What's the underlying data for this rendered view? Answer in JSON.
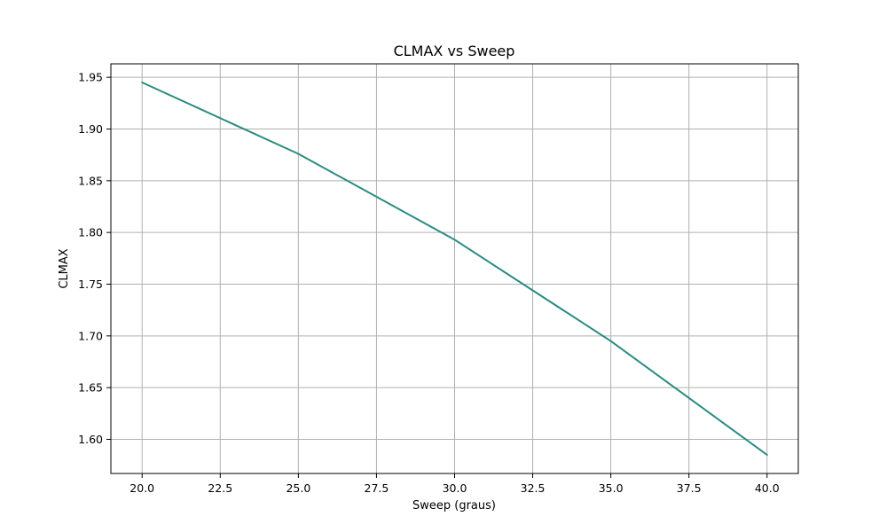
{
  "chart_data": {
    "type": "line",
    "title": "CLMAX vs Sweep",
    "xlabel": "Sweep (graus)",
    "ylabel": "CLMAX",
    "xlim": [
      19.0,
      41.0
    ],
    "ylim": [
      1.567,
      1.963
    ],
    "grid": true,
    "x_ticks": [
      20.0,
      22.5,
      25.0,
      27.5,
      30.0,
      32.5,
      35.0,
      37.5,
      40.0
    ],
    "x_tick_labels": [
      "20.0",
      "22.5",
      "25.0",
      "27.5",
      "30.0",
      "32.5",
      "35.0",
      "37.5",
      "40.0"
    ],
    "y_ticks": [
      1.6,
      1.65,
      1.7,
      1.75,
      1.8,
      1.85,
      1.9,
      1.95
    ],
    "y_tick_labels": [
      "1.60",
      "1.65",
      "1.70",
      "1.75",
      "1.80",
      "1.85",
      "1.90",
      "1.95"
    ],
    "series": [
      {
        "color": "#2a8c80",
        "x": [
          20,
          25,
          30,
          35,
          40
        ],
        "y": [
          1.945,
          1.876,
          1.793,
          1.695,
          1.585
        ]
      }
    ]
  }
}
